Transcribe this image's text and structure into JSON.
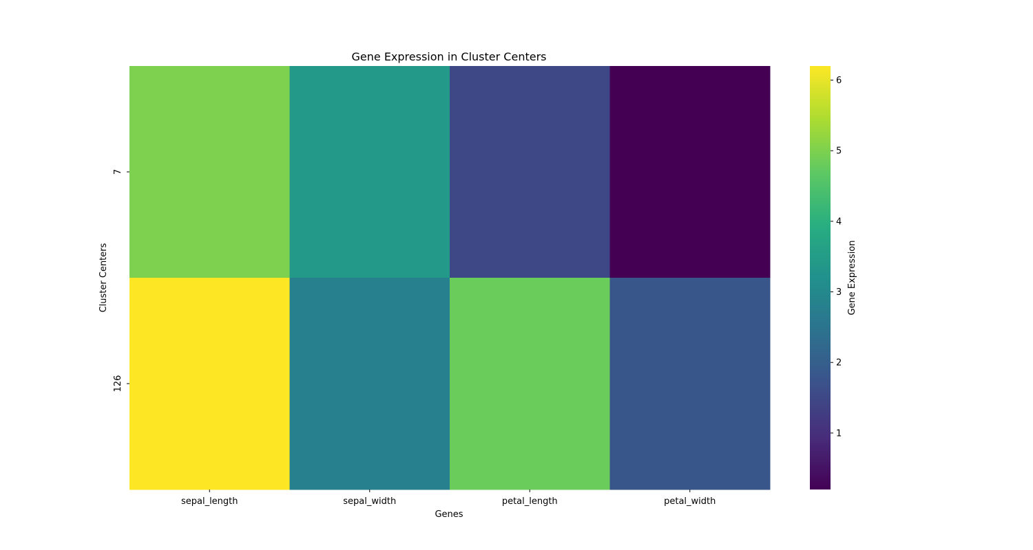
{
  "chart_data": {
    "type": "heatmap",
    "title": "Gene Expression in Cluster Centers",
    "xlabel": "Genes",
    "ylabel": "Cluster Centers",
    "x_categories": [
      "sepal_length",
      "sepal_width",
      "petal_length",
      "petal_width"
    ],
    "y_categories": [
      "7",
      "126"
    ],
    "values": [
      [
        5.0,
        3.4,
        1.5,
        0.2
      ],
      [
        6.2,
        2.8,
        4.8,
        1.8
      ]
    ],
    "colormap": "viridis",
    "colorbar": {
      "label": "Gene Expression",
      "range": [
        0.2,
        6.2
      ],
      "ticks": [
        1,
        2,
        3,
        4,
        5,
        6
      ]
    },
    "grid": false
  }
}
